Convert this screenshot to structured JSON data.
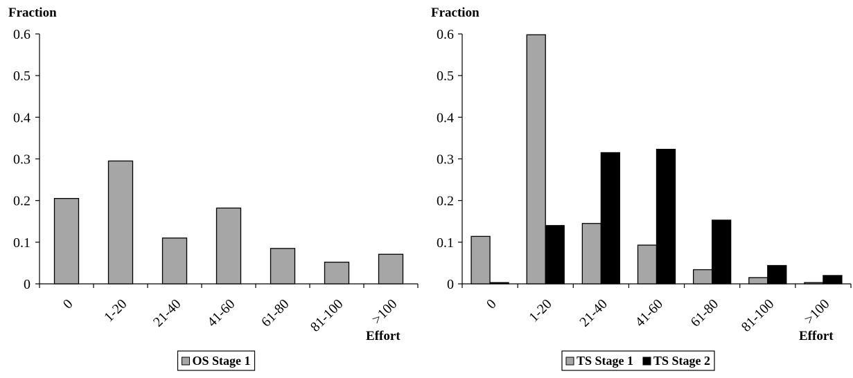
{
  "chart_data": [
    {
      "type": "bar",
      "ylabel": "Fraction",
      "xlabel": "Effort",
      "ylim": [
        0,
        0.6
      ],
      "yticks": [
        "0",
        "0.1",
        "0.2",
        "0.3",
        "0.4",
        "0.5",
        "0.6"
      ],
      "categories": [
        "0",
        "1-20",
        "21-40",
        "41-60",
        "61-80",
        "81-100",
        ">100"
      ],
      "series": [
        {
          "name": "OS Stage 1",
          "color": "#a6a6a6",
          "values": [
            0.205,
            0.295,
            0.11,
            0.182,
            0.085,
            0.052,
            0.071
          ]
        }
      ],
      "legend_position": "bottom"
    },
    {
      "type": "bar",
      "ylabel": "Fraction",
      "xlabel": "Effort",
      "ylim": [
        0,
        0.6
      ],
      "yticks": [
        "0",
        "0.1",
        "0.2",
        "0.3",
        "0.4",
        "0.5",
        "0.6"
      ],
      "categories": [
        "0",
        "1-20",
        "21-40",
        "41-60",
        "61-80",
        "81-100",
        ">100"
      ],
      "series": [
        {
          "name": "TS Stage 1",
          "color": "#a6a6a6",
          "values": [
            0.114,
            0.598,
            0.145,
            0.093,
            0.034,
            0.015,
            0.003
          ]
        },
        {
          "name": "TS Stage 2",
          "color": "#000000",
          "values": [
            0.003,
            0.14,
            0.315,
            0.323,
            0.153,
            0.044,
            0.02
          ]
        }
      ],
      "legend_position": "bottom"
    }
  ]
}
